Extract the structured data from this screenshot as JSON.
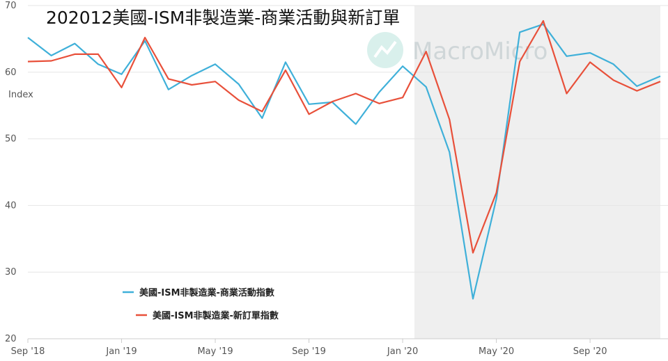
{
  "chart_data": {
    "type": "line",
    "title": "202012美國-ISM非製造業-商業活動與新訂單",
    "ylabel": "Index",
    "ylim": [
      20,
      70
    ],
    "yticks": [
      20,
      30,
      40,
      50,
      60,
      70
    ],
    "x": [
      "2018-09",
      "2018-10",
      "2018-11",
      "2018-12",
      "2019-01",
      "2019-02",
      "2019-03",
      "2019-04",
      "2019-05",
      "2019-06",
      "2019-07",
      "2019-08",
      "2019-09",
      "2019-10",
      "2019-11",
      "2019-12",
      "2020-01",
      "2020-02",
      "2020-03",
      "2020-04",
      "2020-05",
      "2020-06",
      "2020-07",
      "2020-08",
      "2020-09",
      "2020-10",
      "2020-11",
      "2020-12"
    ],
    "xtick_labels": [
      "Sep '18",
      "Jan '19",
      "May '19",
      "Sep '19",
      "Jan '20",
      "May '20",
      "Sep '20"
    ],
    "xtick_positions": [
      "2018-09",
      "2019-01",
      "2019-05",
      "2019-09",
      "2020-01",
      "2020-05",
      "2020-09"
    ],
    "shaded_range": [
      "2020-02",
      "2020-12"
    ],
    "shaded_color": "#efefef",
    "grid": "horizontal",
    "legend_position": "bottom-left",
    "watermark": "MacroMicro",
    "series": [
      {
        "name": "美國-ISM非製造業-商業活動指數",
        "color": "#3fb0d9",
        "values": [
          65.2,
          62.5,
          64.3,
          61.2,
          59.7,
          64.7,
          57.4,
          59.5,
          61.2,
          58.2,
          53.1,
          61.5,
          55.2,
          55.5,
          52.2,
          57.0,
          60.9,
          57.8,
          48.0,
          26.0,
          41.0,
          66.0,
          67.2,
          62.4,
          62.9,
          61.2,
          57.9,
          59.4
        ]
      },
      {
        "name": "美國-ISM非製造業-新訂單指數",
        "color": "#e8503a",
        "values": [
          61.6,
          61.7,
          62.7,
          62.7,
          57.7,
          65.2,
          59.0,
          58.1,
          58.6,
          55.8,
          54.1,
          60.3,
          53.7,
          55.6,
          56.8,
          55.3,
          56.2,
          63.1,
          52.9,
          32.9,
          41.9,
          61.6,
          67.7,
          56.8,
          61.5,
          58.8,
          57.2,
          58.6
        ]
      }
    ]
  }
}
